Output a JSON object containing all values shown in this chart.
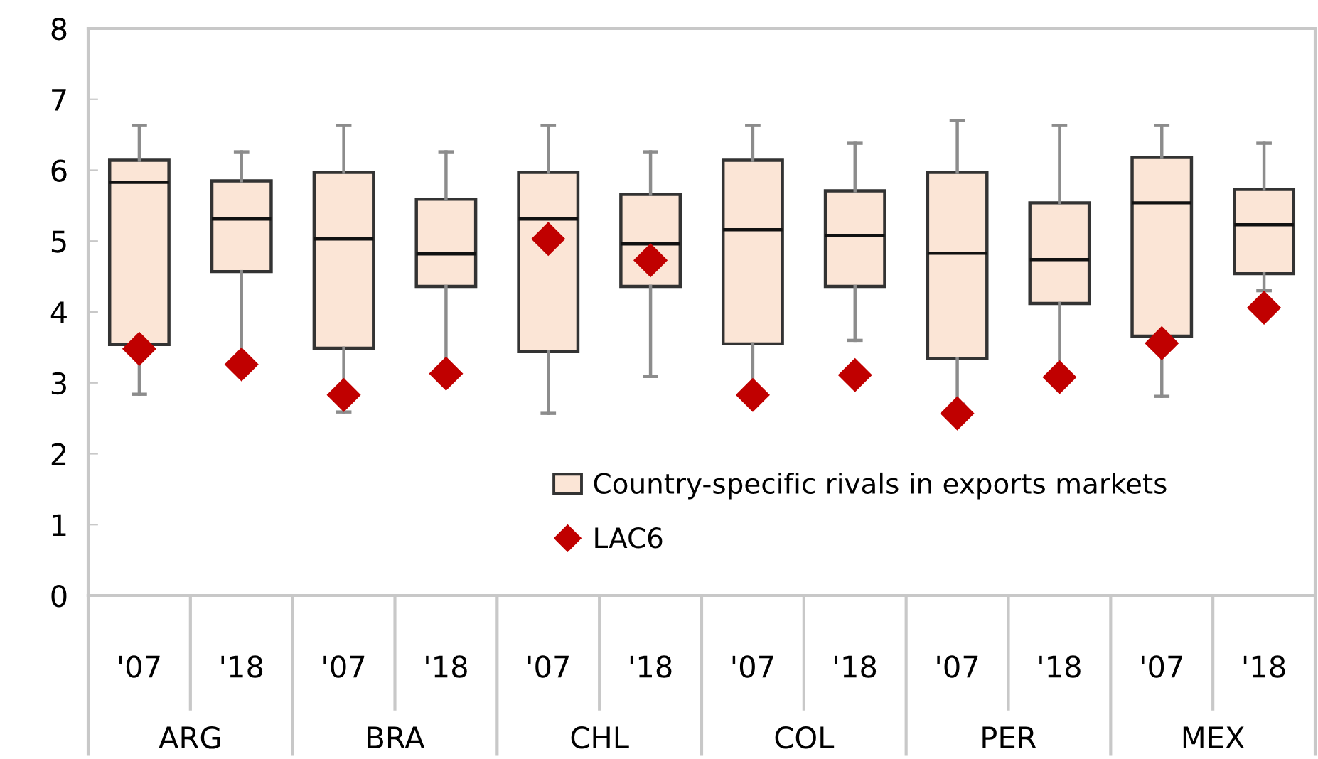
{
  "chart_data": {
    "type": "box",
    "categories": [
      "'07",
      "'18",
      "'07",
      "'18",
      "'07",
      "'18",
      "'07",
      "'18",
      "'07",
      "'18",
      "'07",
      "'18"
    ],
    "annotations": [
      "ARG",
      "BRA",
      "CHL",
      "COL",
      "PER",
      "MEX"
    ],
    "ylim": [
      0,
      8
    ],
    "yticks": [
      0,
      1,
      2,
      3,
      4,
      5,
      6,
      7,
      8
    ],
    "grid": false,
    "legend": "bottom right",
    "series": [
      {
        "name": "Country-specific rivals in exports markets",
        "color": "#fbe5d6",
        "boxes": [
          {
            "low": 2.84,
            "q1": 3.54,
            "median": 5.83,
            "q3": 6.14,
            "high": 6.63
          },
          {
            "low": 3.35,
            "q1": 4.57,
            "median": 5.31,
            "q3": 5.85,
            "high": 6.26
          },
          {
            "low": 2.59,
            "q1": 3.49,
            "median": 5.03,
            "q3": 5.97,
            "high": 6.63
          },
          {
            "low": 3.2,
            "q1": 4.36,
            "median": 4.82,
            "q3": 5.59,
            "high": 6.26
          },
          {
            "low": 2.57,
            "q1": 3.44,
            "median": 5.31,
            "q3": 5.97,
            "high": 6.63
          },
          {
            "low": 3.09,
            "q1": 4.36,
            "median": 4.96,
            "q3": 5.66,
            "high": 6.26
          },
          {
            "low": 2.9,
            "q1": 3.55,
            "median": 5.16,
            "q3": 6.14,
            "high": 6.63
          },
          {
            "low": 3.6,
            "q1": 4.36,
            "median": 5.08,
            "q3": 5.71,
            "high": 6.38
          },
          {
            "low": 2.7,
            "q1": 3.34,
            "median": 4.83,
            "q3": 5.97,
            "high": 6.7
          },
          {
            "low": 3.15,
            "q1": 4.12,
            "median": 4.74,
            "q3": 5.54,
            "high": 6.63
          },
          {
            "low": 2.81,
            "q1": 3.66,
            "median": 5.54,
            "q3": 6.18,
            "high": 6.63
          },
          {
            "low": 4.3,
            "q1": 4.54,
            "median": 5.23,
            "q3": 5.73,
            "high": 6.38
          }
        ]
      },
      {
        "name": "LAC6",
        "type": "scatter",
        "color": "#c00000",
        "marker": "diamond",
        "values": [
          3.48,
          3.26,
          2.83,
          3.13,
          5.03,
          4.73,
          2.83,
          3.11,
          2.57,
          3.08,
          3.56,
          4.06
        ]
      }
    ]
  }
}
